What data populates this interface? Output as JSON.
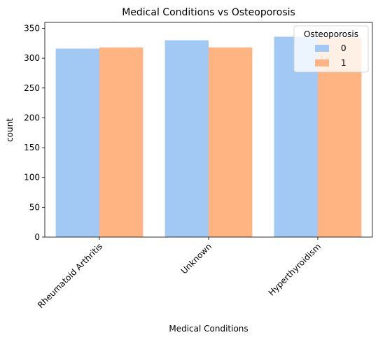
{
  "chart_data": {
    "type": "bar",
    "title": "Medical Conditions vs Osteoporosis",
    "xlabel": "Medical Conditions",
    "ylabel": "count",
    "categories": [
      "Rheumatoid Arthritis",
      "Unknown",
      "Hyperthyroidism"
    ],
    "series": [
      {
        "name": "0",
        "values": [
          316,
          330,
          336
        ],
        "color": "#a1c9f4"
      },
      {
        "name": "1",
        "values": [
          318,
          318,
          334
        ],
        "color": "#ffb482"
      }
    ],
    "ylim": [
      0,
      360
    ],
    "yticks": [
      0,
      50,
      100,
      150,
      200,
      250,
      300,
      350
    ],
    "legend": {
      "title": "Osteoporosis",
      "position": "top-right"
    },
    "grid": false
  }
}
